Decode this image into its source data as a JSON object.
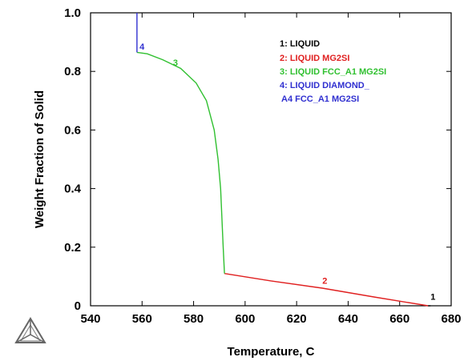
{
  "chart_data": {
    "type": "line",
    "xlabel": "Temperature, C",
    "ylabel": "Weight Fraction of Solid",
    "xlim": [
      540,
      680
    ],
    "ylim": [
      0,
      1.0
    ],
    "x_ticks": [
      "540",
      "560",
      "580",
      "600",
      "620",
      "640",
      "660",
      "680"
    ],
    "y_ticks": [
      "0",
      "0.2",
      "0.4",
      "0.6",
      "0.8",
      "1.0"
    ],
    "grid": false,
    "legend_position": "top-right",
    "legend": [
      {
        "label": "1: LIQUID",
        "color": "#000000"
      },
      {
        "label": "2: LIQUID MG2SI",
        "color": "#e02020"
      },
      {
        "label": "3: LIQUID FCC_A1 MG2SI",
        "color": "#30c030"
      },
      {
        "label": "4: LIQUID DIAMOND_",
        "color": "#3030d0"
      },
      {
        "label": "A4 FCC_A1 MG2SI",
        "color": "#3030d0"
      }
    ],
    "series": [
      {
        "id": "1",
        "color": "#000000",
        "points": [
          [
            671,
            0
          ],
          [
            672,
            0
          ]
        ],
        "label_point": [
          672,
          0.02
        ]
      },
      {
        "id": "2",
        "color": "#e02020",
        "points": [
          [
            671,
            0
          ],
          [
            650,
            0.03
          ],
          [
            630,
            0.06
          ],
          [
            610,
            0.085
          ],
          [
            592,
            0.11
          ]
        ],
        "label_point": [
          630,
          0.075
        ]
      },
      {
        "id": "3",
        "color": "#30c030",
        "points": [
          [
            592,
            0.11
          ],
          [
            591.5,
            0.2
          ],
          [
            591,
            0.3
          ],
          [
            590.5,
            0.4
          ],
          [
            589.5,
            0.5
          ],
          [
            588,
            0.6
          ],
          [
            585,
            0.7
          ],
          [
            581,
            0.76
          ],
          [
            575,
            0.81
          ],
          [
            568,
            0.84
          ],
          [
            562,
            0.86
          ],
          [
            558,
            0.865
          ]
        ],
        "label_point": [
          572,
          0.82
        ]
      },
      {
        "id": "4",
        "color": "#3030d0",
        "points": [
          [
            558,
            0.865
          ],
          [
            558,
            1.0
          ]
        ],
        "label_point": [
          559,
          0.875
        ]
      }
    ]
  },
  "logo": {
    "name": "thermo-calc-logo"
  }
}
